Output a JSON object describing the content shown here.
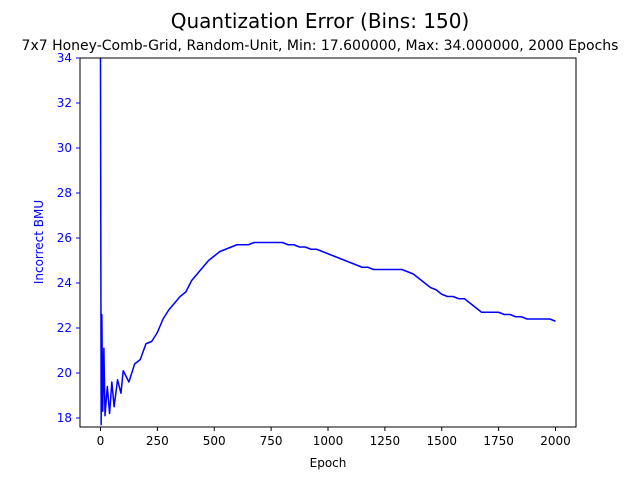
{
  "chart_data": {
    "type": "line",
    "title": "Quantization Error (Bins: 150)",
    "subtitle": "7x7 Honey-Comb-Grid, Random-Unit, Min: 17.600000, Max: 34.000000, 2000 Epochs",
    "xlabel": "Epoch",
    "ylabel": "Incorrect BMU",
    "xlim": [
      -90,
      2090
    ],
    "ylim": [
      17.6,
      34
    ],
    "x_ticks": [
      0,
      250,
      500,
      750,
      1000,
      1250,
      1500,
      1750,
      2000
    ],
    "y_ticks": [
      18,
      20,
      22,
      24,
      26,
      28,
      30,
      32,
      34
    ],
    "grid": false,
    "legend": "none",
    "colors": {
      "series": "#0000ff",
      "y_axis": "#0000ff",
      "x_axis": "#000000"
    },
    "series": [
      {
        "x": [
          0,
          3,
          6,
          10,
          15,
          20,
          30,
          40,
          50,
          60,
          75,
          90,
          100,
          125,
          150,
          175,
          200,
          225,
          250,
          275,
          300,
          325,
          350,
          375,
          400,
          425,
          450,
          475,
          500,
          525,
          550,
          575,
          600,
          625,
          650,
          675,
          700,
          725,
          750,
          775,
          800,
          825,
          850,
          875,
          900,
          925,
          950,
          975,
          1000,
          1025,
          1050,
          1075,
          1100,
          1125,
          1150,
          1175,
          1200,
          1225,
          1250,
          1275,
          1300,
          1325,
          1350,
          1375,
          1400,
          1425,
          1450,
          1475,
          1500,
          1525,
          1550,
          1575,
          1600,
          1625,
          1650,
          1675,
          1700,
          1725,
          1750,
          1775,
          1800,
          1825,
          1850,
          1875,
          1900,
          1925,
          1950,
          1975,
          2000
        ],
        "values": [
          34,
          17.7,
          22.6,
          18.3,
          21.1,
          18.1,
          19.4,
          18.2,
          19.6,
          18.5,
          19.7,
          19.1,
          20.1,
          19.6,
          20.4,
          20.6,
          21.3,
          21.4,
          21.8,
          22.4,
          22.8,
          23.1,
          23.4,
          23.6,
          24.1,
          24.4,
          24.7,
          25.0,
          25.2,
          25.4,
          25.5,
          25.6,
          25.7,
          25.7,
          25.7,
          25.8,
          25.8,
          25.8,
          25.8,
          25.8,
          25.8,
          25.7,
          25.7,
          25.6,
          25.6,
          25.5,
          25.5,
          25.4,
          25.3,
          25.2,
          25.1,
          25.0,
          24.9,
          24.8,
          24.7,
          24.7,
          24.6,
          24.6,
          24.6,
          24.6,
          24.6,
          24.6,
          24.5,
          24.4,
          24.2,
          24.0,
          23.8,
          23.7,
          23.5,
          23.4,
          23.4,
          23.3,
          23.3,
          23.1,
          22.9,
          22.7,
          22.7,
          22.7,
          22.7,
          22.6,
          22.6,
          22.5,
          22.5,
          22.4,
          22.4,
          22.4,
          22.4,
          22.4,
          22.3
        ]
      }
    ]
  }
}
